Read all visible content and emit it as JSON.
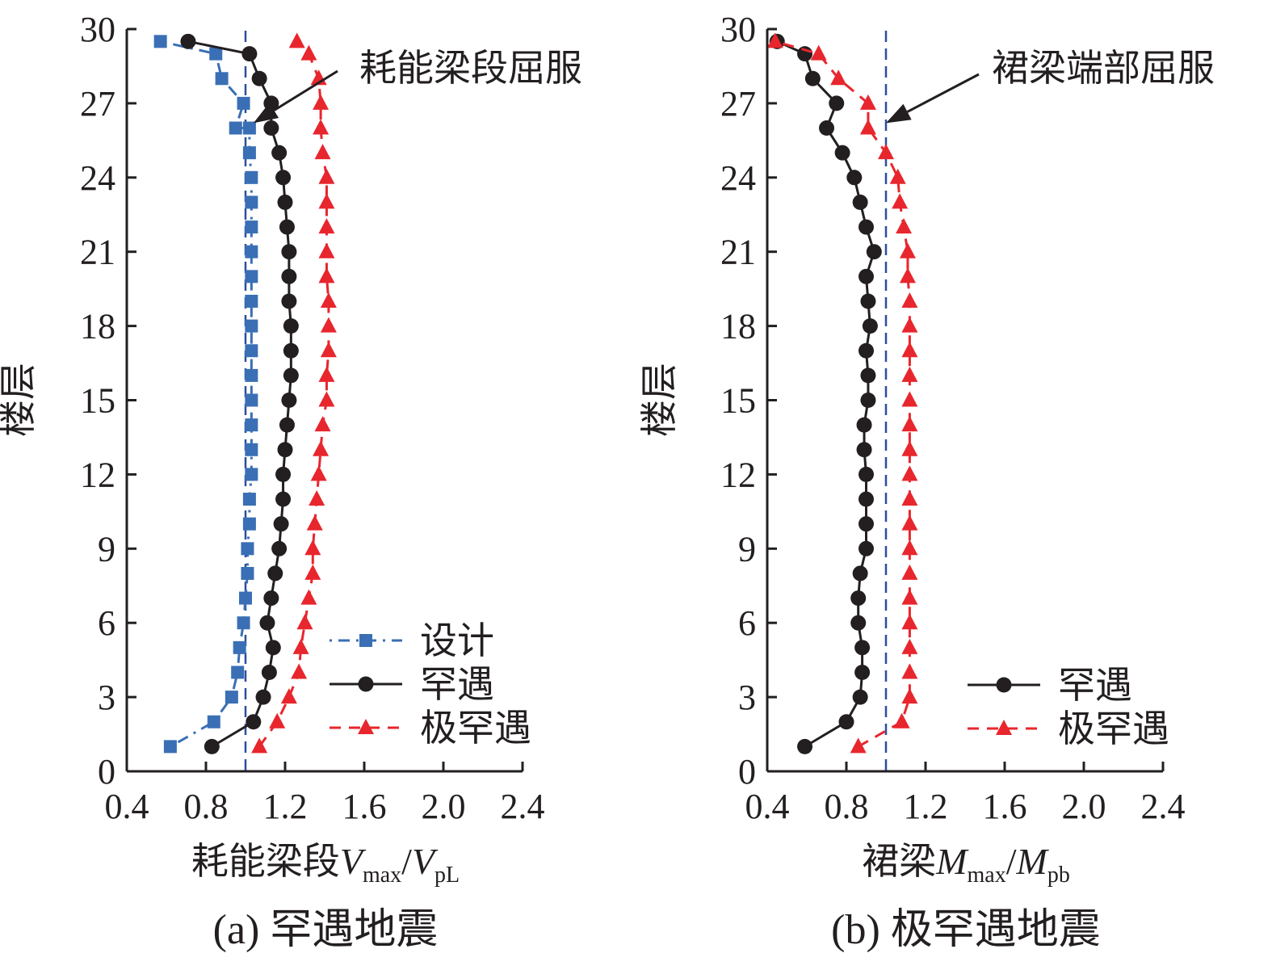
{
  "chart_data": [
    {
      "type": "line",
      "caption": "(a) 罕遇地震",
      "xlabel": {
        "main": "耗能梁段",
        "v": "V",
        "v_sub": "max",
        "slash": "/",
        "v2": "V",
        "v2_sub": "pL"
      },
      "ylabel": "楼层",
      "xlim": [
        0.4,
        2.4
      ],
      "ylim": [
        0,
        30
      ],
      "xticks": [
        "0.4",
        "0.8",
        "1.2",
        "1.6",
        "2.0",
        "2.4"
      ],
      "yticks": [
        "0",
        "3",
        "6",
        "9",
        "12",
        "15",
        "18",
        "21",
        "24",
        "27",
        "30"
      ],
      "reference_line_x": 1.0,
      "annotation": {
        "text": "耗能梁段屈服",
        "x": 1.04,
        "y": 26.2
      },
      "legend_position": "lower-right",
      "series": [
        {
          "name": "设计",
          "color": "#3a6fb5",
          "marker": "square",
          "line": "dashdot",
          "x": [
            0.62,
            0.84,
            0.93,
            0.96,
            0.97,
            0.99,
            1.0,
            1.01,
            1.01,
            1.02,
            1.02,
            1.03,
            1.03,
            1.03,
            1.03,
            1.03,
            1.03,
            1.03,
            1.03,
            1.03,
            1.03,
            1.03,
            1.03,
            1.03,
            1.02,
            1.02,
            0.95,
            0.99,
            0.88,
            0.85,
            0.57
          ],
          "y": [
            1,
            2,
            3,
            4,
            5,
            6,
            7,
            8,
            9,
            10,
            11,
            12,
            13,
            14,
            15,
            16,
            17,
            18,
            19,
            20,
            21,
            22,
            23,
            24,
            25,
            26,
            26,
            27,
            28,
            29,
            29.5
          ]
        },
        {
          "name": "罕遇",
          "color": "#231f20",
          "marker": "circle",
          "line": "solid",
          "x": [
            0.83,
            1.04,
            1.09,
            1.12,
            1.14,
            1.11,
            1.13,
            1.15,
            1.17,
            1.18,
            1.19,
            1.19,
            1.2,
            1.21,
            1.22,
            1.23,
            1.23,
            1.23,
            1.22,
            1.22,
            1.22,
            1.21,
            1.2,
            1.19,
            1.17,
            1.13,
            1.13,
            1.07,
            1.02,
            0.71
          ],
          "y": [
            1,
            2,
            3,
            4,
            5,
            6,
            7,
            8,
            9,
            10,
            11,
            12,
            13,
            14,
            15,
            16,
            17,
            18,
            19,
            20,
            21,
            22,
            23,
            24,
            25,
            26,
            27,
            28,
            29,
            29.5
          ]
        },
        {
          "name": "极罕遇",
          "color": "#e8262d",
          "marker": "triangle",
          "line": "dashed",
          "x": [
            1.07,
            1.16,
            1.22,
            1.27,
            1.28,
            1.3,
            1.32,
            1.34,
            1.34,
            1.35,
            1.36,
            1.37,
            1.38,
            1.39,
            1.41,
            1.41,
            1.42,
            1.42,
            1.42,
            1.41,
            1.41,
            1.41,
            1.41,
            1.41,
            1.39,
            1.38,
            1.38,
            1.37,
            1.32,
            1.26
          ],
          "y": [
            1,
            2,
            3,
            4,
            5,
            6,
            7,
            8,
            9,
            10,
            11,
            12,
            13,
            14,
            15,
            16,
            17,
            18,
            19,
            20,
            21,
            22,
            23,
            24,
            25,
            26,
            27,
            28,
            29,
            29.5
          ]
        }
      ]
    },
    {
      "type": "line",
      "caption": "(b) 极罕遇地震",
      "xlabel": {
        "main": "裙梁",
        "v": "M",
        "v_sub": "max",
        "slash": "/",
        "v2": "M",
        "v2_sub": "pb"
      },
      "ylabel": "楼层",
      "xlim": [
        0.4,
        2.4
      ],
      "ylim": [
        0,
        30
      ],
      "xticks": [
        "0.4",
        "0.8",
        "1.2",
        "1.6",
        "2.0",
        "2.4"
      ],
      "yticks": [
        "0",
        "3",
        "6",
        "9",
        "12",
        "15",
        "18",
        "21",
        "24",
        "27",
        "30"
      ],
      "reference_line_x": 1.0,
      "annotation": {
        "text": "裙梁端部屈服",
        "x": 1.0,
        "y": 26.2
      },
      "legend_position": "lower-right",
      "series": [
        {
          "name": "罕遇",
          "color": "#231f20",
          "marker": "circle",
          "line": "solid",
          "x": [
            0.59,
            0.8,
            0.87,
            0.88,
            0.88,
            0.86,
            0.86,
            0.87,
            0.9,
            0.9,
            0.9,
            0.9,
            0.89,
            0.89,
            0.91,
            0.91,
            0.9,
            0.92,
            0.91,
            0.9,
            0.94,
            0.9,
            0.87,
            0.84,
            0.78,
            0.7,
            0.75,
            0.63,
            0.59,
            0.45
          ],
          "y": [
            1,
            2,
            3,
            4,
            5,
            6,
            7,
            8,
            9,
            10,
            11,
            12,
            13,
            14,
            15,
            16,
            17,
            18,
            19,
            20,
            21,
            22,
            23,
            24,
            25,
            26,
            27,
            28,
            29,
            29.5
          ]
        },
        {
          "name": "极罕遇",
          "color": "#e8262d",
          "marker": "triangle",
          "line": "dashed",
          "x": [
            0.86,
            1.08,
            1.12,
            1.12,
            1.12,
            1.12,
            1.12,
            1.12,
            1.12,
            1.12,
            1.12,
            1.12,
            1.12,
            1.12,
            1.12,
            1.12,
            1.12,
            1.12,
            1.12,
            1.11,
            1.11,
            1.09,
            1.07,
            1.06,
            1.0,
            0.91,
            0.91,
            0.76,
            0.66,
            0.44
          ],
          "y": [
            1,
            2,
            3,
            4,
            5,
            6,
            7,
            8,
            9,
            10,
            11,
            12,
            13,
            14,
            15,
            16,
            17,
            18,
            19,
            20,
            21,
            22,
            23,
            24,
            25,
            26,
            27,
            28,
            29,
            29.5
          ]
        }
      ]
    }
  ]
}
